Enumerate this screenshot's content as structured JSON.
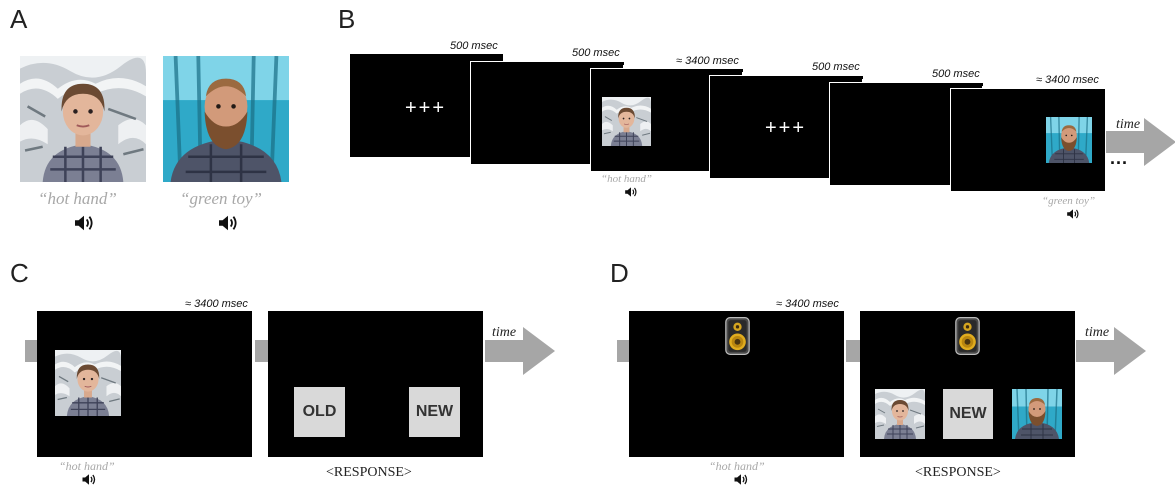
{
  "panels": {
    "a": {
      "letter": "A",
      "captions": [
        "“hot hand”",
        "“green toy”"
      ]
    },
    "b": {
      "letter": "B",
      "durations": [
        "500 msec",
        "500 msec",
        "≈ 3400 msec",
        "500 msec",
        "500 msec",
        "≈ 3400 msec"
      ],
      "fixation": "+++",
      "captions": [
        "“hot hand”",
        "“green toy”"
      ],
      "time_label": "time",
      "ellipsis": "..."
    },
    "c": {
      "letter": "C",
      "duration": "≈ 3400 msec",
      "caption": "“hot hand”",
      "time_label": "time",
      "old_label": "OLD",
      "new_label": "NEW",
      "response_label": "<RESPONSE>"
    },
    "d": {
      "letter": "D",
      "duration": "≈ 3400 msec",
      "caption": "“hot hand”",
      "time_label": "time",
      "new_label": "NEW",
      "response_label": "<RESPONSE>"
    }
  },
  "colors": {
    "screen": "#000000",
    "caption": "#a8a8a8",
    "arrow": "#a6a6a6",
    "button": "#d9d9d9",
    "woman_background": "#c9ced3",
    "man_background": "#2fa9c8"
  }
}
